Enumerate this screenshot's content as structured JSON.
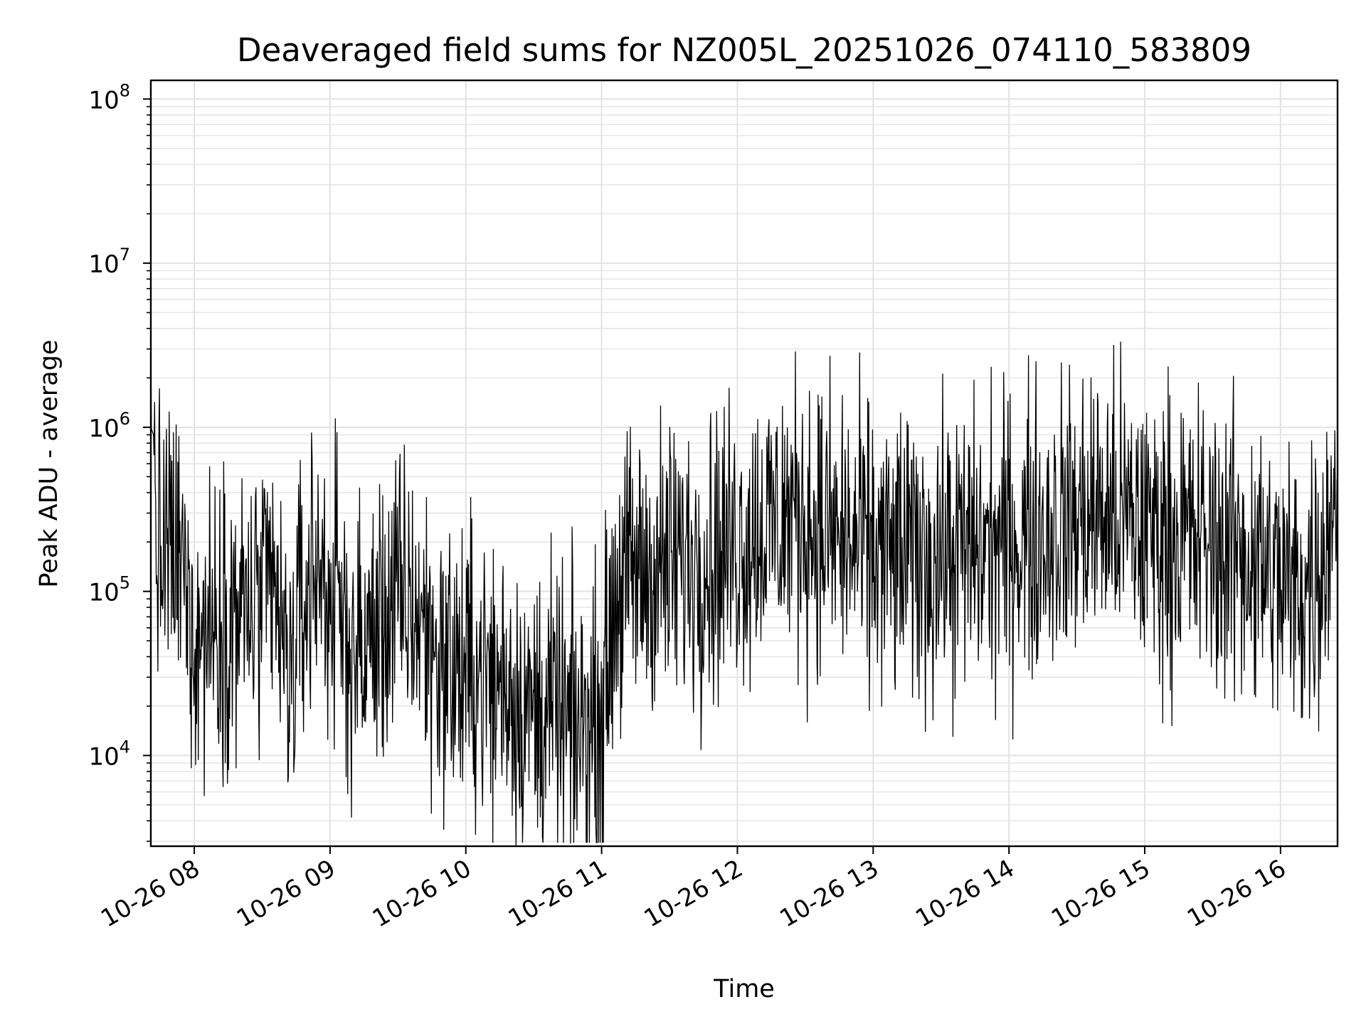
{
  "chart_data": {
    "type": "line",
    "title": "Deaveraged field sums for NZ005L_20251026_074110_583809",
    "xlabel": "Time",
    "ylabel": "Peak ADU - average",
    "yscale": "log",
    "ylim": [
      2800,
      130000000
    ],
    "xlim": [
      7.68,
      16.42
    ],
    "grid": true,
    "line_color": "#000000",
    "x_ticks": [
      {
        "value": 8,
        "label": "10-26 08"
      },
      {
        "value": 9,
        "label": "10-26 09"
      },
      {
        "value": 10,
        "label": "10-26 10"
      },
      {
        "value": 11,
        "label": "10-26 11"
      },
      {
        "value": 12,
        "label": "10-26 12"
      },
      {
        "value": 13,
        "label": "10-26 13"
      },
      {
        "value": 14,
        "label": "10-26 14"
      },
      {
        "value": 15,
        "label": "10-26 15"
      },
      {
        "value": 16,
        "label": "10-26 16"
      }
    ],
    "y_ticks": [
      {
        "value": 10000,
        "base": "10",
        "exp": "4"
      },
      {
        "value": 100000,
        "base": "10",
        "exp": "5"
      },
      {
        "value": 1000000,
        "base": "10",
        "exp": "6"
      },
      {
        "value": 10000000,
        "base": "10",
        "exp": "7"
      },
      {
        "value": 100000000,
        "base": "10",
        "exp": "8"
      }
    ],
    "series": [
      {
        "name": "Peak ADU - average",
        "x": [
          7.68,
          7.7,
          7.72,
          7.75,
          7.8,
          7.85,
          7.9,
          7.95,
          8.0,
          8.05,
          8.1,
          8.15,
          8.2,
          8.3,
          8.4,
          8.5,
          8.6,
          8.65,
          8.7,
          8.8,
          8.9,
          9.0,
          9.1,
          9.2,
          9.3,
          9.4,
          9.5,
          9.6,
          9.7,
          9.8,
          9.9,
          10.0,
          10.1,
          10.2,
          10.3,
          10.4,
          10.5,
          10.6,
          10.7,
          10.8,
          10.9,
          11.0,
          11.05,
          11.1,
          11.2,
          11.3,
          11.4,
          11.5,
          11.6,
          11.7,
          11.8,
          11.9,
          12.0,
          12.1,
          12.2,
          12.3,
          12.4,
          12.5,
          12.6,
          12.7,
          12.8,
          12.9,
          13.0,
          13.2,
          13.4,
          13.6,
          13.8,
          14.0,
          14.2,
          14.4,
          14.6,
          14.8,
          15.0,
          15.2,
          15.4,
          15.6,
          15.8,
          16.0,
          16.1,
          16.2,
          16.3,
          16.42
        ],
        "values": [
          1000000,
          900000,
          200000,
          150000,
          180000,
          160000,
          140000,
          100000,
          60000,
          50000,
          70000,
          60000,
          80000,
          70000,
          75000,
          80000,
          100000,
          40000,
          30000,
          80000,
          150000,
          100000,
          60000,
          40000,
          50000,
          70000,
          90000,
          80000,
          60000,
          40000,
          35000,
          30000,
          35000,
          25000,
          30000,
          20000,
          18000,
          20000,
          15000,
          14000,
          15000,
          18000,
          40000,
          100000,
          120000,
          130000,
          140000,
          140000,
          150000,
          160000,
          170000,
          180000,
          200000,
          220000,
          250000,
          260000,
          300000,
          280000,
          240000,
          220000,
          200000,
          180000,
          170000,
          160000,
          160000,
          170000,
          180000,
          200000,
          220000,
          260000,
          300000,
          280000,
          240000,
          220000,
          200000,
          180000,
          160000,
          110000,
          100000,
          110000,
          150000,
          500000
        ]
      }
    ]
  }
}
